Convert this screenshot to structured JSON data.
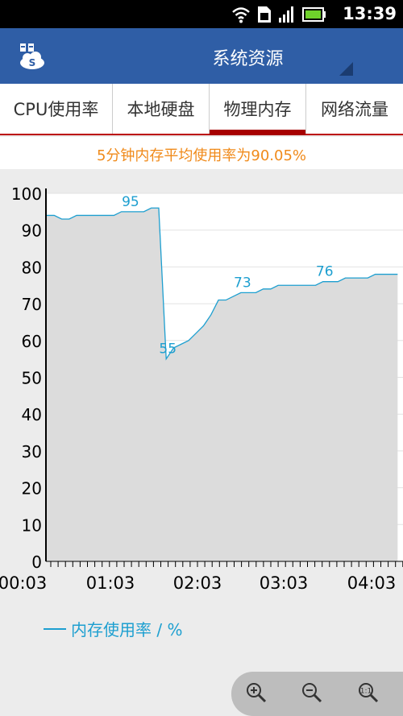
{
  "status_bar": {
    "time": "13:39"
  },
  "app_bar": {
    "title": "系统资源"
  },
  "tabs": [
    {
      "label": "CPU使用率",
      "active": false
    },
    {
      "label": "本地硬盘",
      "active": false
    },
    {
      "label": "物理内存",
      "active": true
    },
    {
      "label": "网络流量",
      "active": false
    }
  ],
  "summary": "5分钟内存平均使用率为90.05%",
  "legend": {
    "label": "内存使用率 / %"
  },
  "colors": {
    "app_bar": "#2f5ea6",
    "series": "#1d9fd0",
    "summary_text": "#f08a1a",
    "tab_indicator": "#a60000"
  },
  "chart_data": {
    "type": "area",
    "ylim": [
      0,
      100
    ],
    "y_ticks": [
      "0",
      "10",
      "20",
      "30",
      "40",
      "50",
      "60",
      "70",
      "80",
      "90",
      "100"
    ],
    "x_tick_labels": [
      "00:03",
      "01:03",
      "02:03",
      "03:03",
      "04:03"
    ],
    "series": [
      {
        "name": "内存使用率 / %",
        "values": [
          94,
          94,
          93,
          93,
          94,
          94,
          94,
          94,
          94,
          94,
          95,
          95,
          95,
          95,
          96,
          96,
          55,
          58,
          59,
          60,
          62,
          64,
          67,
          71,
          71,
          72,
          73,
          73,
          73,
          74,
          74,
          75,
          75,
          75,
          75,
          75,
          75,
          76,
          76,
          76,
          77,
          77,
          77,
          77,
          78,
          78,
          78,
          78
        ]
      }
    ],
    "data_labels": [
      {
        "index": 11,
        "text": "95"
      },
      {
        "index": 16,
        "text": "55"
      },
      {
        "index": 26,
        "text": "73"
      },
      {
        "index": 37,
        "text": "76"
      }
    ],
    "grid": true
  }
}
